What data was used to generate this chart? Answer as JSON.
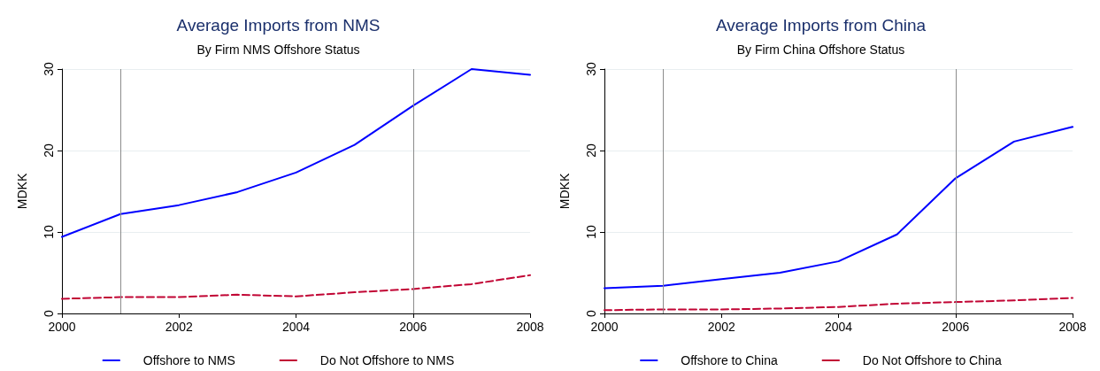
{
  "chart_data": [
    {
      "type": "line",
      "title": "Average Imports from NMS",
      "subtitle": "By Firm NMS Offshore Status",
      "ylabel": "MDKK",
      "x": [
        2000,
        2001,
        2002,
        2003,
        2004,
        2005,
        2006,
        2007,
        2008
      ],
      "series": [
        {
          "name": "Offshore to NMS",
          "color": "#0000ff",
          "line_style": "solid",
          "values": [
            9.4,
            12.2,
            13.3,
            14.9,
            17.3,
            20.7,
            25.5,
            30,
            29.3
          ]
        },
        {
          "name": "Do Not Offshore to NMS",
          "color": "#c10534",
          "line_style": "dashed",
          "values": [
            1.8,
            2.0,
            2.0,
            2.3,
            2.1,
            2.6,
            3.0,
            3.6,
            4.7
          ]
        }
      ],
      "xlim": [
        2000,
        2008
      ],
      "xticks": [
        2000,
        2002,
        2004,
        2006,
        2008
      ],
      "ylim": [
        0,
        30
      ],
      "yticks": [
        0,
        10,
        20,
        30
      ],
      "grid": "y",
      "legend": "bottom",
      "marker": "none",
      "ref_lines": [
        {
          "axis": "x",
          "value": 2001,
          "color": "#8c8c8c"
        },
        {
          "axis": "x",
          "value": 2006,
          "color": "#8c8c8c"
        }
      ]
    },
    {
      "type": "line",
      "title": "Average Imports from China",
      "subtitle": "By Firm China Offshore Status",
      "ylabel": "MDKK",
      "x": [
        2000,
        2001,
        2002,
        2003,
        2004,
        2005,
        2006,
        2007,
        2008
      ],
      "series": [
        {
          "name": "Offshore to China",
          "color": "#0000ff",
          "line_style": "solid",
          "values": [
            3.1,
            3.4,
            4.2,
            5.0,
            6.4,
            9.7,
            16.6,
            21.1,
            22.9
          ]
        },
        {
          "name": "Do Not Offshore to China",
          "color": "#c10534",
          "line_style": "dashed",
          "values": [
            0.4,
            0.5,
            0.5,
            0.6,
            0.8,
            1.2,
            1.4,
            1.6,
            1.9
          ]
        }
      ],
      "xlim": [
        2000,
        2008
      ],
      "xticks": [
        2000,
        2002,
        2004,
        2006,
        2008
      ],
      "ylim": [
        0,
        30
      ],
      "yticks": [
        0,
        10,
        20,
        30
      ],
      "grid": "y",
      "legend": "bottom",
      "marker": "none",
      "ref_lines": [
        {
          "axis": "x",
          "value": 2001,
          "color": "#8c8c8c"
        },
        {
          "axis": "x",
          "value": 2006,
          "color": "#8c8c8c"
        }
      ]
    }
  ]
}
